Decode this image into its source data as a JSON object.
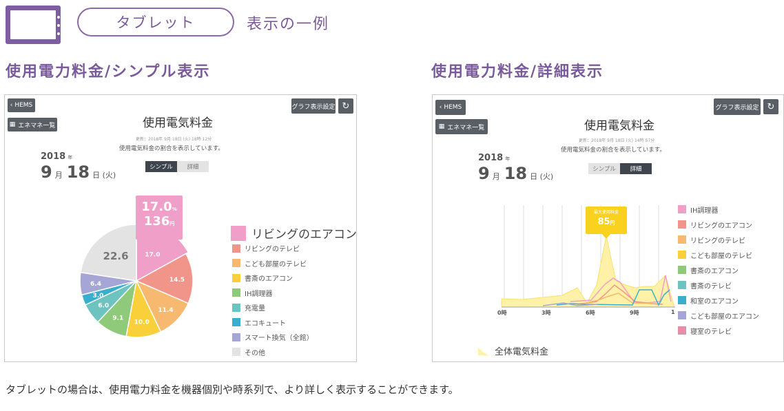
{
  "header": {
    "pill_label": "タブレット",
    "suffix": "表示の一例"
  },
  "sections": {
    "simple_title": "使用電力料金/シンプル表示",
    "detail_title": "使用電力料金/詳細表示"
  },
  "common": {
    "back_label": "HEMS",
    "enemane_label": "エネマネ一覧",
    "graph_settings_label": "グラフ表示設定",
    "screen_title": "使用電気料金",
    "description": "使用電気料金の割合を表示しています。",
    "year": "2018",
    "year_unit": "年",
    "month": "9",
    "month_unit": "月",
    "day": "18",
    "day_unit": "日 (火)",
    "tab_simple": "シンプル",
    "tab_detail": "詳細"
  },
  "simple": {
    "updated": "更新：2018年 9月 18日 (火) 18時 12分",
    "callout_percent": "17.0",
    "callout_percent_unit": "%",
    "callout_yen": "136",
    "callout_yen_unit": "円",
    "highlight_label": "リビングのエアコン",
    "legend": [
      {
        "label": "リビングのテレビ",
        "color": "#f1948a"
      },
      {
        "label": "こども部屋のテレビ",
        "color": "#f6b96f"
      },
      {
        "label": "書斎のエアコン",
        "color": "#f9cf3a"
      },
      {
        "label": "IH調理器",
        "color": "#8fc97a"
      },
      {
        "label": "充電量",
        "color": "#6cc3c0"
      },
      {
        "label": "エコキュート",
        "color": "#3aaecd"
      },
      {
        "label": "スマート換気（全館）",
        "color": "#a6a6d6"
      },
      {
        "label": "その他",
        "color": "#e3e3e3"
      }
    ]
  },
  "chart_data": {
    "type": "pie",
    "slices": [
      {
        "label": "リビングのエアコン",
        "value": 17.0,
        "color": "#f09fc8"
      },
      {
        "label": "リビングのテレビ",
        "value": 14.5,
        "color": "#f1948a"
      },
      {
        "label": "こども部屋のテレビ",
        "value": 11.4,
        "color": "#f6b96f"
      },
      {
        "label": "書斎のエアコン",
        "value": 10.0,
        "color": "#f9cf3a"
      },
      {
        "label": "IH調理器",
        "value": 9.1,
        "color": "#8fc97a"
      },
      {
        "label": "充電量",
        "value": 6.0,
        "color": "#6cc3c0"
      },
      {
        "label": "エコキュート",
        "value": 3.0,
        "color": "#3aaecd"
      },
      {
        "label": "スマート換気（全館）",
        "value": 6.4,
        "color": "#a6a6d6"
      },
      {
        "label": "その他",
        "value": 22.6,
        "color": "#e3e3e3"
      }
    ]
  },
  "detail": {
    "updated": "更新：2018年 9月 18日 (火) 14時 57分",
    "callout_label": "最大使用料金",
    "callout_value": "85",
    "callout_unit": "円",
    "x_ticks": [
      "0時",
      "3時",
      "6時",
      "9時",
      "1"
    ],
    "total_label": "全体電気料金",
    "total_color": "#fff2a8",
    "legend": [
      {
        "label": "IH調理器",
        "color": "#f09fc8"
      },
      {
        "label": "リビングのエアコン",
        "color": "#f1948a"
      },
      {
        "label": "リビングのテレビ",
        "color": "#f6b96f"
      },
      {
        "label": "こども部屋のテレビ",
        "color": "#f9cf3a"
      },
      {
        "label": "書斎のエアコン",
        "color": "#8fc97a"
      },
      {
        "label": "書斎のテレビ",
        "color": "#6cc3c0"
      },
      {
        "label": "和室のエアコン",
        "color": "#3aaecd"
      },
      {
        "label": "こども部屋のエアコン",
        "color": "#a6a6d6"
      },
      {
        "label": "寝室のテレビ",
        "color": "#e88fa8"
      }
    ]
  },
  "footer": "タブレットの場合は、使用電力料金を機器個別や時系列で、より詳しく表示することができます。"
}
